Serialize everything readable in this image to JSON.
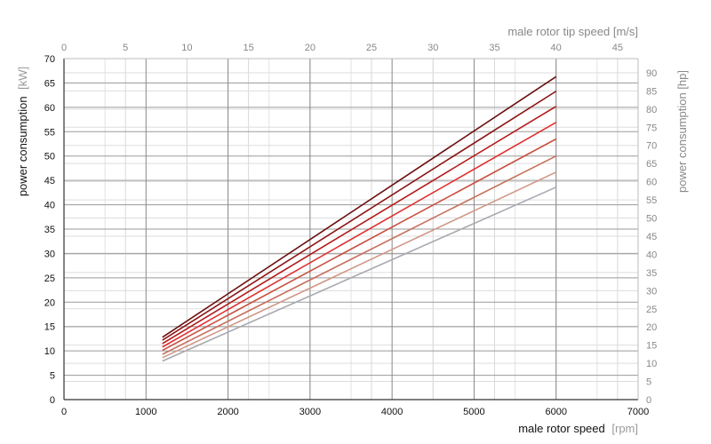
{
  "chart_data": {
    "type": "line",
    "x_bottom": {
      "label_main": "male rotor speed",
      "label_unit": "[rpm]",
      "range": [
        0,
        7000
      ],
      "ticks": [
        "0",
        "1000",
        "2000",
        "3000",
        "4000",
        "5000",
        "6000",
        "7000"
      ]
    },
    "x_top": {
      "label": "male rotor tip speed [m/s]",
      "range": [
        0,
        46.67
      ],
      "ticks": [
        "0",
        "5",
        "10",
        "15",
        "20",
        "25",
        "30",
        "35",
        "40",
        "45"
      ]
    },
    "y_left": {
      "label_main": "power consumption",
      "label_unit": "[kW]",
      "range": [
        0,
        70
      ],
      "ticks": [
        "0",
        "5",
        "10",
        "15",
        "20",
        "25",
        "30",
        "35",
        "40",
        "45",
        "50",
        "55",
        "60",
        "65",
        "70"
      ]
    },
    "y_right": {
      "label": "power consumption [hp]",
      "range": [
        0,
        93.9
      ],
      "ticks": [
        "0",
        "5",
        "10",
        "15",
        "20",
        "25",
        "30",
        "35",
        "40",
        "45",
        "50",
        "55",
        "60",
        "65",
        "70",
        "75",
        "80",
        "85",
        "90"
      ]
    },
    "grid": true,
    "x": [
      1200,
      6000
    ],
    "series": [
      {
        "values": [
          12.8,
          66.3
        ],
        "color": "#6b0f0f"
      },
      {
        "values": [
          12.2,
          63.3
        ],
        "color": "#8c1414"
      },
      {
        "values": [
          11.5,
          60.2
        ],
        "color": "#b21a1a"
      },
      {
        "values": [
          10.8,
          56.9
        ],
        "color": "#e03030"
      },
      {
        "values": [
          10.1,
          53.5
        ],
        "color": "#c85040"
      },
      {
        "values": [
          9.3,
          50.0
        ],
        "color": "#c87060"
      },
      {
        "values": [
          8.6,
          46.7
        ],
        "color": "#d09888"
      },
      {
        "values": [
          7.9,
          43.6
        ],
        "color": "#a8a8b0"
      }
    ]
  }
}
